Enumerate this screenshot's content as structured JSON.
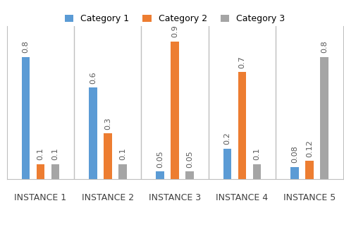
{
  "chart_data": {
    "type": "bar",
    "categories": [
      "INSTANCE 1",
      "INSTANCE 2",
      "INSTANCE 3",
      "INSTANCE 4",
      "INSTANCE 5"
    ],
    "series": [
      {
        "name": "Category 1",
        "color": "#5b9bd5",
        "values": [
          0.8,
          0.6,
          0.05,
          0.2,
          0.08
        ]
      },
      {
        "name": "Category 2",
        "color": "#ed7d31",
        "values": [
          0.1,
          0.3,
          0.9,
          0.7,
          0.12
        ]
      },
      {
        "name": "Category 3",
        "color": "#a5a5a5",
        "values": [
          0.1,
          0.1,
          0.05,
          0.1,
          0.8
        ]
      }
    ],
    "ylim": [
      0,
      1.0
    ],
    "tick_labels": "x",
    "data_labels": true,
    "legend": "upper center"
  }
}
